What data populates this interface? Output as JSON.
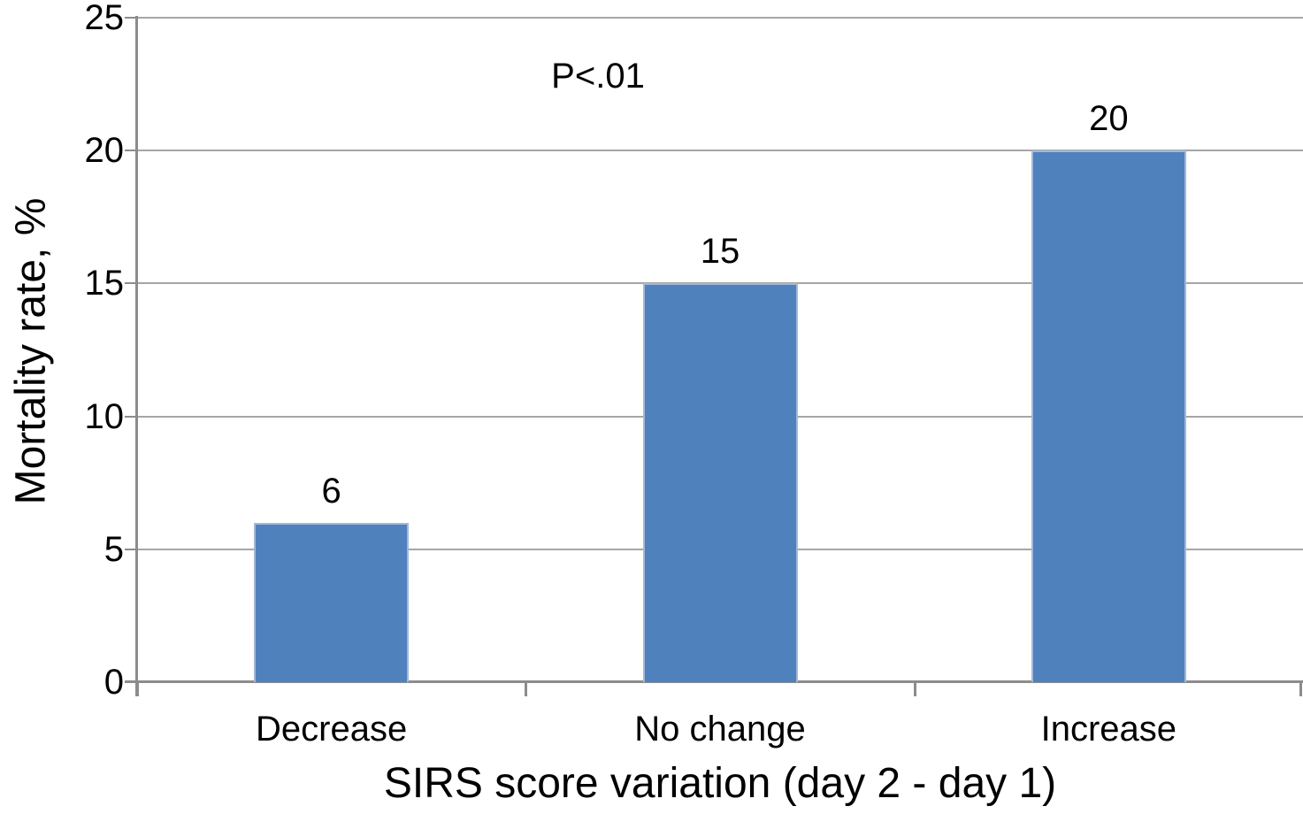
{
  "figure": {
    "background": "#FFFFFF"
  },
  "chart_data": {
    "type": "bar",
    "title": "",
    "annotation": "P<.01",
    "categories": [
      "Decrease",
      "No change",
      "Increase"
    ],
    "values": [
      6,
      15,
      20
    ],
    "data_labels": [
      "6",
      "15",
      "20"
    ],
    "xlabel": "SIRS score variation (day 2 - day 1)",
    "ylabel": "Mortality rate, %",
    "ylim": [
      0,
      25
    ],
    "yticks": [
      0,
      5,
      10,
      15,
      20,
      25
    ],
    "ytick_labels": [
      "0",
      "5",
      "10",
      "15",
      "20",
      "25"
    ],
    "grid": "horizontal",
    "legend": "none",
    "bar_color": "#4F81BD",
    "bar_border_color": "#A3B8D9",
    "gridline_color": "#A6A6A6",
    "axis_color": "#8C8C8C",
    "text_color": "#000000"
  }
}
